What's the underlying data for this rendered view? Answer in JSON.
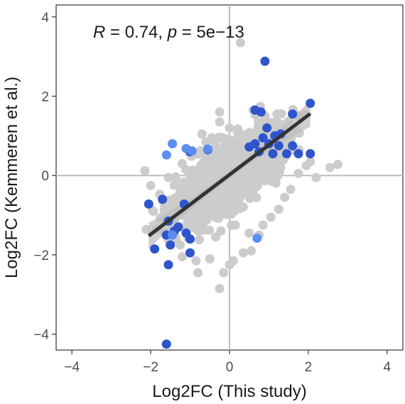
{
  "chart_data": {
    "type": "scatter",
    "xlabel": "Log2FC (This study)",
    "ylabel": "Log2FC (Kemmeren et al.)",
    "annotation": {
      "r_symbol": "R",
      "r_text": " = 0.74, ",
      "p_symbol": "p",
      "p_text": " = 5e−13"
    },
    "xlim": [
      -4.4,
      4.4
    ],
    "ylim": [
      -4.4,
      4.3
    ],
    "xticks": [
      -4,
      -2,
      0,
      2,
      4
    ],
    "yticks": [
      -4,
      -2,
      0,
      2,
      4
    ],
    "tick_labels_x": [
      "−4",
      "−2",
      "0",
      "2",
      "4"
    ],
    "tick_labels_y": [
      "−4",
      "−2",
      "0",
      "2",
      "4"
    ],
    "grid": false,
    "reference_lines": {
      "x": 0,
      "y": 0,
      "color": "#bdbdbd"
    },
    "colors": {
      "grey": "#cccccc",
      "dark_blue": "#2f55cc",
      "light_blue": "#5b8ef0",
      "fit_line": "#333333",
      "ci_band": "#bebebe"
    },
    "fit": {
      "x": [
        -2.05,
        2.05
      ],
      "y": [
        -1.52,
        1.56
      ],
      "ci_halfwidth_ends": 0.33,
      "ci_halfwidth_center": 0.09
    },
    "grey_points": [
      [
        0.28,
        3.35
      ],
      [
        -0.25,
        1.35
      ],
      [
        -0.7,
        1.05
      ],
      [
        -0.6,
        0.85
      ],
      [
        -1.0,
        0.55
      ],
      [
        -1.2,
        0.3
      ],
      [
        -2.15,
        0.12
      ],
      [
        -2.0,
        -0.25
      ],
      [
        -1.55,
        -0.05
      ],
      [
        -1.7,
        -1.1
      ],
      [
        -1.85,
        -1.35
      ],
      [
        -1.25,
        -1.75
      ],
      [
        -1.2,
        -2.05
      ],
      [
        -0.85,
        -2.15
      ],
      [
        -0.8,
        -2.45
      ],
      [
        -0.5,
        -2.1
      ],
      [
        -0.25,
        -2.85
      ],
      [
        -0.15,
        -2.45
      ],
      [
        0.0,
        -2.25
      ],
      [
        0.1,
        -2.15
      ],
      [
        0.35,
        -1.95
      ],
      [
        0.5,
        -1.45
      ],
      [
        0.55,
        -1.9
      ],
      [
        0.75,
        -1.5
      ],
      [
        0.85,
        -1.25
      ],
      [
        1.05,
        -1.05
      ],
      [
        1.25,
        -0.85
      ],
      [
        1.4,
        -0.55
      ],
      [
        1.55,
        -0.35
      ],
      [
        1.75,
        0.05
      ],
      [
        1.95,
        0.25
      ],
      [
        2.05,
        0.35
      ],
      [
        2.55,
        0.2
      ],
      [
        2.75,
        0.28
      ],
      [
        2.2,
        -0.05
      ],
      [
        0.6,
        1.65
      ],
      [
        0.9,
        1.5
      ],
      [
        -0.25,
        1.6
      ],
      [
        0.0,
        1.2
      ],
      [
        -0.45,
        0.95
      ],
      [
        -1.3,
        -0.6
      ],
      [
        -1.0,
        -0.95
      ],
      [
        -0.7,
        -1.25
      ],
      [
        -0.35,
        -1.55
      ],
      [
        0.15,
        -1.25
      ],
      [
        0.25,
        1.0
      ]
    ],
    "dark_blue_points": [
      [
        0.9,
        2.88
      ],
      [
        2.05,
        1.82
      ],
      [
        0.8,
        1.6
      ],
      [
        0.65,
        1.65
      ],
      [
        1.6,
        1.55
      ],
      [
        0.95,
        1.2
      ],
      [
        1.3,
        1.05
      ],
      [
        1.15,
        1.0
      ],
      [
        0.85,
        0.95
      ],
      [
        1.0,
        0.8
      ],
      [
        1.25,
        0.75
      ],
      [
        0.5,
        0.72
      ],
      [
        0.75,
        0.6
      ],
      [
        1.1,
        0.55
      ],
      [
        1.45,
        0.55
      ],
      [
        1.75,
        0.55
      ],
      [
        2.05,
        0.55
      ],
      [
        1.6,
        0.75
      ],
      [
        0.65,
        0.8
      ],
      [
        -0.55,
        0.65
      ],
      [
        -1.0,
        0.6
      ],
      [
        -2.05,
        -0.72
      ],
      [
        -1.7,
        -0.6
      ],
      [
        -1.15,
        -0.72
      ],
      [
        -1.55,
        -1.15
      ],
      [
        -1.3,
        -1.3
      ],
      [
        -1.6,
        -1.5
      ],
      [
        -1.4,
        -1.4
      ],
      [
        -1.1,
        -1.45
      ],
      [
        -1.0,
        -1.6
      ],
      [
        -1.9,
        -1.85
      ],
      [
        -1.5,
        -1.75
      ],
      [
        -1.0,
        -1.95
      ],
      [
        -1.55,
        -2.25
      ],
      [
        -1.6,
        -4.25
      ]
    ],
    "light_blue_points": [
      [
        -1.45,
        0.8
      ],
      [
        -1.6,
        0.52
      ],
      [
        -1.1,
        0.68
      ],
      [
        -0.95,
        0.62
      ],
      [
        -0.55,
        0.67
      ],
      [
        -1.45,
        -1.5
      ],
      [
        0.7,
        -1.58
      ]
    ]
  }
}
